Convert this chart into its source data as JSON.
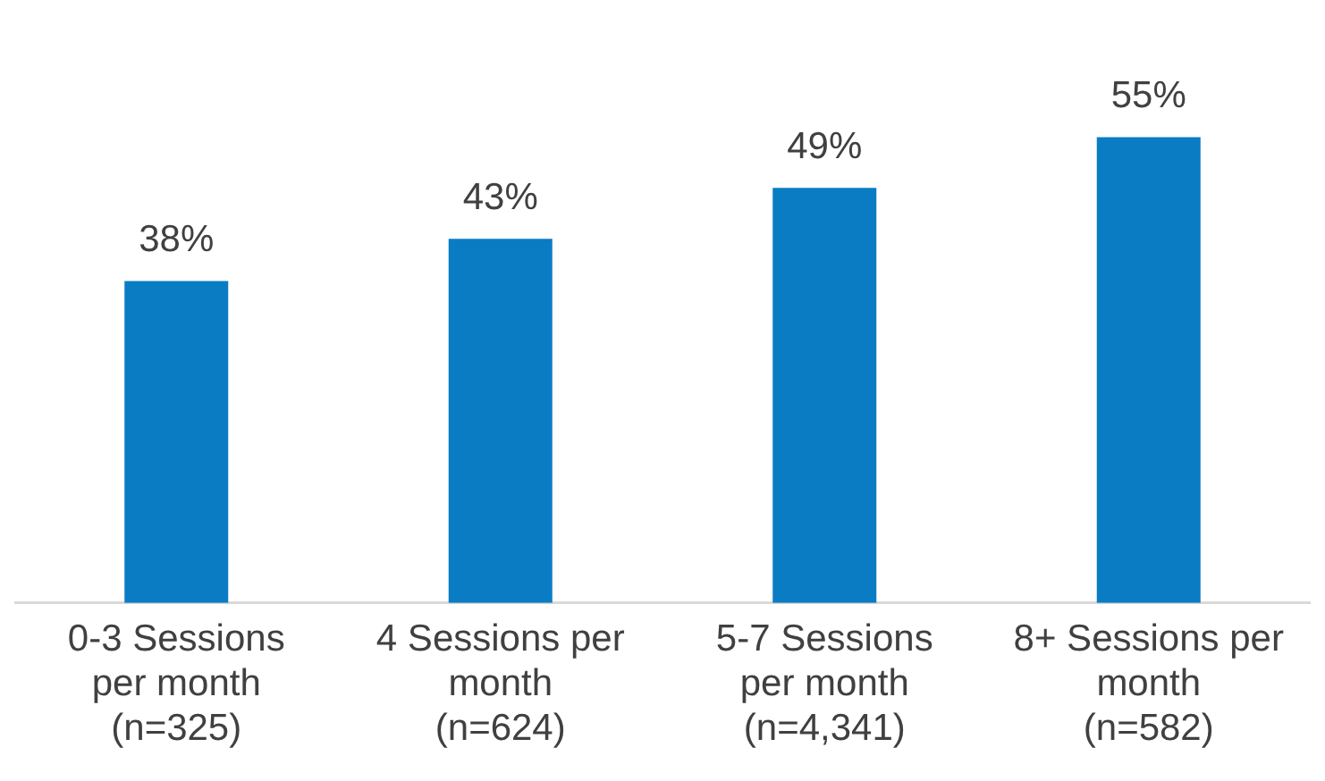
{
  "chart_data": {
    "type": "bar",
    "categories": [
      "0-3 Sessions\nper month\n(n=325)",
      "4 Sessions per\nmonth\n(n=624)",
      "5-7 Sessions\nper month\n(n=4,341)",
      "8+ Sessions per\nmonth\n(n=582)"
    ],
    "values": [
      38,
      43,
      49,
      55
    ],
    "value_labels": [
      "38%",
      "43%",
      "49%",
      "55%"
    ],
    "color": "#0a7cc4",
    "grid": false,
    "legend": false
  }
}
